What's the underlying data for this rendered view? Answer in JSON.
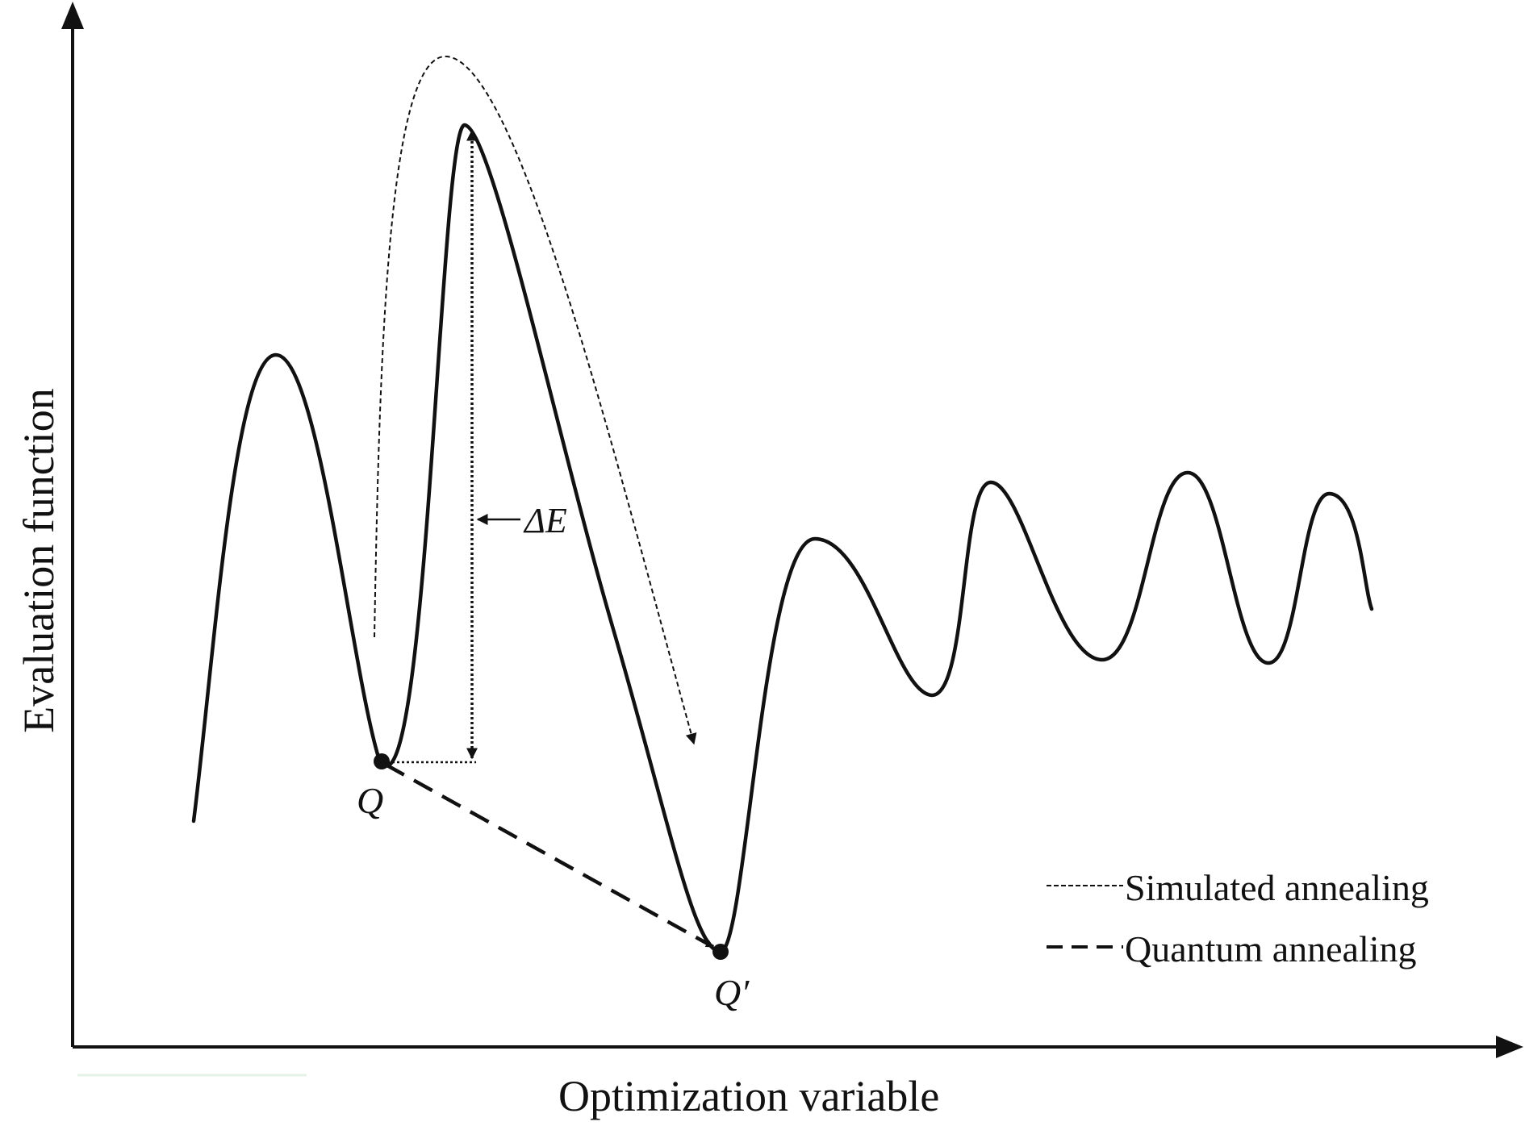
{
  "diagram": {
    "x_axis_label": "Optimization variable",
    "y_axis_label": "Evaluation function",
    "point_labels": {
      "local_minimum": "Q",
      "global_minimum": "Q′"
    },
    "energy_barrier_label": "ΔE",
    "legend": [
      {
        "label": "Simulated annealing",
        "style": "fine-dashed"
      },
      {
        "label": "Quantum annealing",
        "style": "long-dashed"
      }
    ],
    "colors": {
      "line": "#111111",
      "background": "#ffffff"
    }
  }
}
